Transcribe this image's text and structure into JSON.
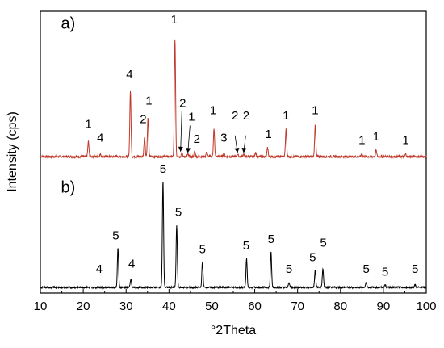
{
  "chart_data": {
    "type": "line",
    "xlabel": "°2Theta",
    "ylabel": "Intensity (cps)",
    "xlim": [
      10,
      100
    ],
    "xticks": [
      10,
      20,
      30,
      40,
      50,
      60,
      70,
      80,
      90,
      100
    ],
    "grid": false,
    "legend": "none",
    "panels": [
      {
        "label": "a)",
        "color": "#c0392b",
        "baseline": 0.0,
        "peaks": [
          {
            "x": 21.2,
            "h": 0.12
          },
          {
            "x": 24.0,
            "h": 0.02
          },
          {
            "x": 31.0,
            "h": 0.53
          },
          {
            "x": 34.3,
            "h": 0.16
          },
          {
            "x": 35.1,
            "h": 0.31
          },
          {
            "x": 41.4,
            "h": 0.95
          },
          {
            "x": 43.0,
            "h": 0.03
          },
          {
            "x": 44.4,
            "h": 0.02
          },
          {
            "x": 46.0,
            "h": 0.04
          },
          {
            "x": 48.8,
            "h": 0.04
          },
          {
            "x": 50.5,
            "h": 0.22
          },
          {
            "x": 52.8,
            "h": 0.03
          },
          {
            "x": 56.0,
            "h": 0.02
          },
          {
            "x": 57.4,
            "h": 0.02
          },
          {
            "x": 60.2,
            "h": 0.03
          },
          {
            "x": 63.0,
            "h": 0.07
          },
          {
            "x": 67.3,
            "h": 0.22
          },
          {
            "x": 74.1,
            "h": 0.25
          },
          {
            "x": 85.0,
            "h": 0.02
          },
          {
            "x": 88.3,
            "h": 0.05
          },
          {
            "x": 95.2,
            "h": 0.02
          }
        ],
        "annotations": [
          {
            "text": "a)",
            "x": 14.8,
            "y": 1.03
          },
          {
            "text": "1",
            "x": 21.2,
            "y": 0.23
          },
          {
            "text": "4",
            "x": 24.0,
            "y": 0.12
          },
          {
            "text": "4",
            "x": 30.8,
            "y": 0.63
          },
          {
            "text": "2",
            "x": 34.0,
            "y": 0.27
          },
          {
            "text": "1",
            "x": 35.3,
            "y": 0.42
          },
          {
            "text": "1",
            "x": 41.2,
            "y": 1.07
          },
          {
            "text": "2",
            "x": 43.2,
            "y": 0.4
          },
          {
            "text": "1",
            "x": 45.3,
            "y": 0.29
          },
          {
            "text": "2",
            "x": 46.5,
            "y": 0.11
          },
          {
            "text": "1",
            "x": 50.3,
            "y": 0.34
          },
          {
            "text": "3",
            "x": 52.8,
            "y": 0.12
          },
          {
            "text": "2",
            "x": 55.4,
            "y": 0.3
          },
          {
            "text": "2",
            "x": 58.0,
            "y": 0.3
          },
          {
            "text": "1",
            "x": 63.2,
            "y": 0.15
          },
          {
            "text": "1",
            "x": 67.3,
            "y": 0.3
          },
          {
            "text": "1",
            "x": 74.1,
            "y": 0.34
          },
          {
            "text": "1",
            "x": 85.0,
            "y": 0.1
          },
          {
            "text": "1",
            "x": 88.3,
            "y": 0.13
          },
          {
            "text": "1",
            "x": 95.2,
            "y": 0.1
          }
        ],
        "arrows": [
          {
            "from": [
              43.0,
              0.37
            ],
            "to": [
              42.7,
              0.04
            ]
          },
          {
            "from": [
              44.9,
              0.25
            ],
            "to": [
              44.4,
              0.03
            ]
          },
          {
            "from": [
              55.4,
              0.17
            ],
            "to": [
              56.0,
              0.03
            ]
          },
          {
            "from": [
              57.9,
              0.17
            ],
            "to": [
              57.4,
              0.03
            ]
          }
        ]
      },
      {
        "label": "b)",
        "color": "#000000",
        "baseline": 0.0,
        "peaks": [
          {
            "x": 28.1,
            "h": 0.44
          },
          {
            "x": 31.1,
            "h": 0.09
          },
          {
            "x": 38.6,
            "h": 1.18
          },
          {
            "x": 41.8,
            "h": 0.69
          },
          {
            "x": 47.8,
            "h": 0.28
          },
          {
            "x": 58.1,
            "h": 0.32
          },
          {
            "x": 63.8,
            "h": 0.39
          },
          {
            "x": 68.0,
            "h": 0.06
          },
          {
            "x": 74.1,
            "h": 0.19
          },
          {
            "x": 75.9,
            "h": 0.21
          },
          {
            "x": 86.0,
            "h": 0.06
          },
          {
            "x": 90.4,
            "h": 0.03
          },
          {
            "x": 97.4,
            "h": 0.03
          }
        ],
        "annotations": [
          {
            "text": "b)",
            "x": 14.8,
            "y": 1.05
          },
          {
            "text": "4",
            "x": 23.7,
            "y": 0.16
          },
          {
            "text": "5",
            "x": 27.6,
            "y": 0.53
          },
          {
            "text": "4",
            "x": 31.3,
            "y": 0.22
          },
          {
            "text": "5",
            "x": 38.6,
            "y": 1.27
          },
          {
            "text": "5",
            "x": 42.2,
            "y": 0.79
          },
          {
            "text": "5",
            "x": 47.8,
            "y": 0.38
          },
          {
            "text": "5",
            "x": 58.0,
            "y": 0.42
          },
          {
            "text": "5",
            "x": 63.8,
            "y": 0.49
          },
          {
            "text": "5",
            "x": 68.0,
            "y": 0.16
          },
          {
            "text": "5",
            "x": 73.5,
            "y": 0.29
          },
          {
            "text": "5",
            "x": 76.0,
            "y": 0.45
          },
          {
            "text": "5",
            "x": 86.0,
            "y": 0.16
          },
          {
            "text": "5",
            "x": 90.4,
            "y": 0.13
          },
          {
            "text": "5",
            "x": 97.4,
            "y": 0.16
          }
        ],
        "arrows": []
      }
    ]
  }
}
